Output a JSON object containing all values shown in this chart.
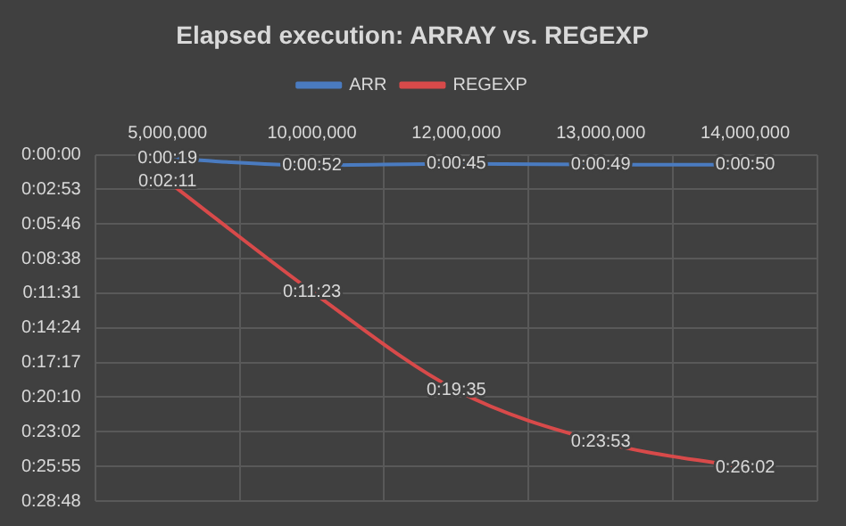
{
  "chart_data": {
    "type": "line",
    "title": "Elapsed execution: ARRAY vs. REGEXP",
    "categories": [
      "5,000,000",
      "10,000,000",
      "12,000,000",
      "13,000,000",
      "14,000,000"
    ],
    "series": [
      {
        "name": "ARR",
        "color": "#4a7bc0",
        "values": [
          19,
          52,
          45,
          49,
          50
        ],
        "value_labels": [
          "0:00:19",
          "0:00:52",
          "0:00:45",
          "0:00:49",
          "0:00:50"
        ]
      },
      {
        "name": "REGEXP",
        "color": "#d84a4a",
        "values": [
          131,
          683,
          1175,
          1433,
          1562
        ],
        "value_labels": [
          "0:02:11",
          "0:11:23",
          "0:19:35",
          "0:23:53",
          "0:26:02"
        ]
      }
    ],
    "ylim": [
      1728,
      0
    ],
    "yticks": [
      {
        "value": 0,
        "label": "0:00:00"
      },
      {
        "value": 172.8,
        "label": "0:02:53"
      },
      {
        "value": 345.6,
        "label": "0:05:46"
      },
      {
        "value": 518.4,
        "label": "0:08:38"
      },
      {
        "value": 691.2,
        "label": "0:11:31"
      },
      {
        "value": 864,
        "label": "0:14:24"
      },
      {
        "value": 1036.8,
        "label": "0:17:17"
      },
      {
        "value": 1209.6,
        "label": "0:20:10"
      },
      {
        "value": 1382.4,
        "label": "0:23:02"
      },
      {
        "value": 1555.2,
        "label": "0:25:55"
      },
      {
        "value": 1728,
        "label": "0:28:48"
      }
    ],
    "grid": true,
    "legend": "top",
    "marker": "none",
    "line_style": "solid"
  }
}
